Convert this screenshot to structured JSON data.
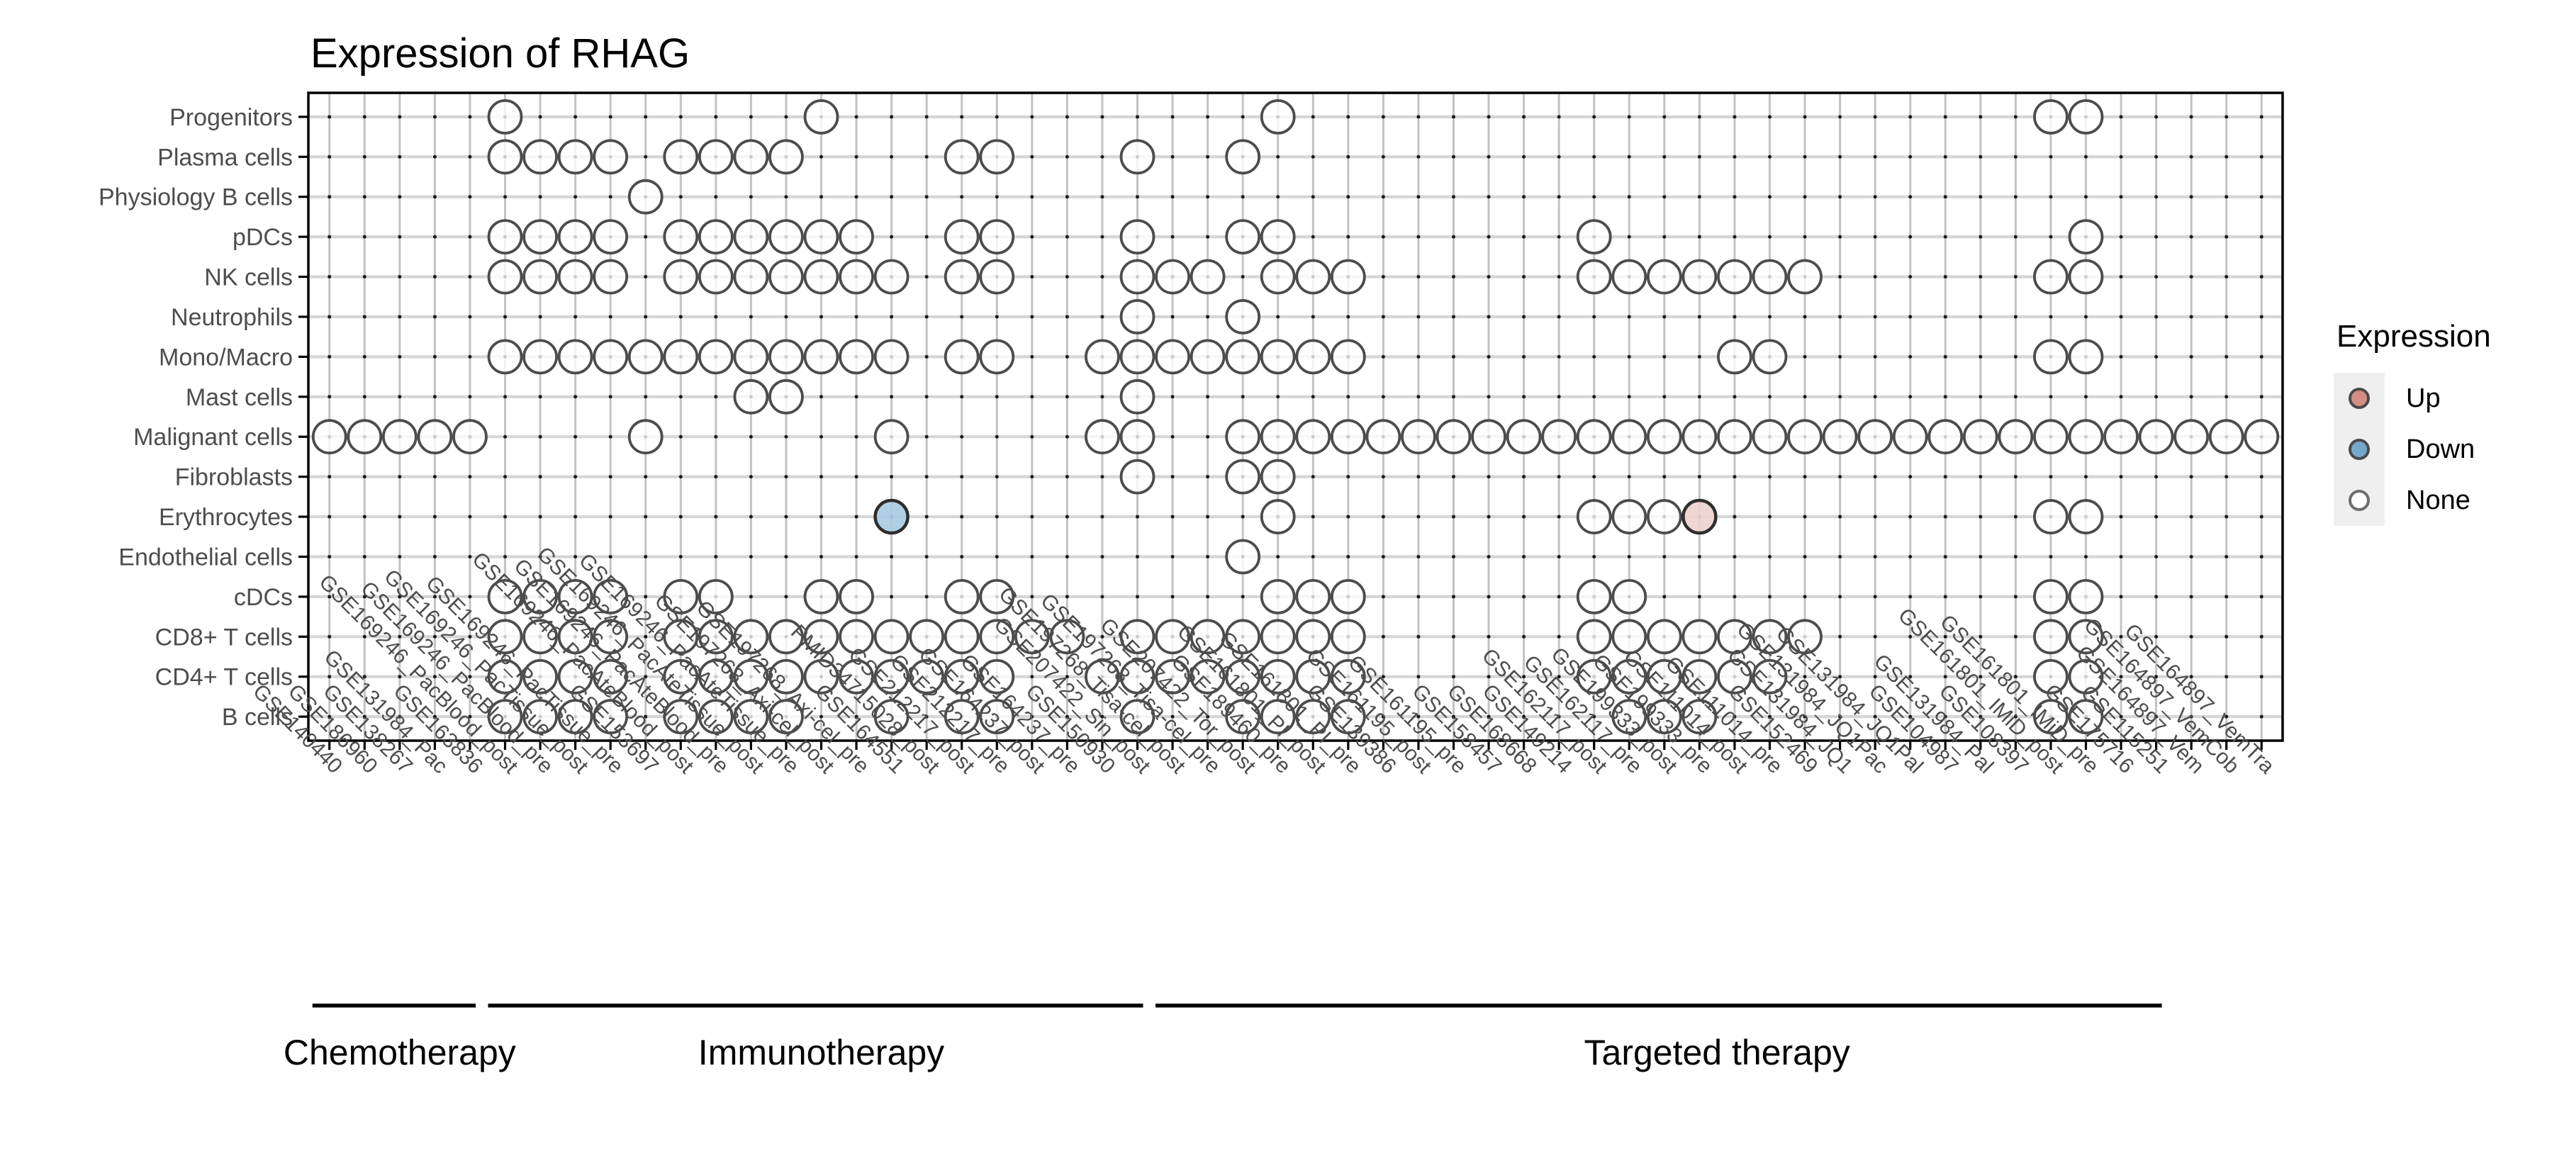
{
  "page": {
    "background": "#ffffff"
  },
  "chart_data": {
    "type": "scatter",
    "subtype": "expression-dot-matrix",
    "title": "Expression of RHAG",
    "legend": {
      "title": "Expression",
      "items": [
        {
          "label": "Up",
          "key": "up"
        },
        {
          "label": "Down",
          "key": "down"
        },
        {
          "label": "None",
          "key": "none"
        }
      ]
    },
    "colors": {
      "up_matrix": "#edd2cf",
      "down_matrix": "#aacbe2",
      "none_matrix": "#ffffff",
      "up_legend": "#d68e84",
      "down_legend": "#74a9cc",
      "none_legend": "#ffffff",
      "circle_stroke": "#4c4c4c",
      "special_stroke": "#2e2e2e",
      "grid_h": "#d6d6d6",
      "grid_v": "#c3c3c3",
      "grid_dot": "#1a1a1a",
      "axis_text": "#4d4d4d",
      "border": "#000000",
      "group_line": "#000000"
    },
    "columns": [
      "GSE140440",
      "GSE186960",
      "GSE138267",
      "GSE131984_Pac",
      "GSE163836",
      "GSE169246_PacBlood_post",
      "GSE169246_PacBlood_pre",
      "GSE169246_PacTissue_post",
      "GSE169246_PacTissue_pre",
      "GSE153697",
      "GSE169246_PacAteBlood_post",
      "GSE169246_PacAteBlood_pre",
      "GSE169246_PacAteTissue_post",
      "GSE169246_PacAteTissue_pre",
      "GSE197268_Axi-cel_post",
      "GSE197268_Axi-cel_pre",
      "GSE164551",
      "PMID34715028_post",
      "GSE212217_post",
      "GSE212217_pre",
      "GSE164237_post",
      "GSE164237_pre",
      "GSE150930",
      "GSE207422_Sin_post",
      "GSE197268_Tisa-cel_post",
      "GSE197268_Tisa-cel_pre",
      "GSE207422_Tor_post",
      "GSE189460_pre",
      "GSE161801_PI_post",
      "GSE161801_PI_pre",
      "GSE139386",
      "GSE161195_post",
      "GSE161195_pre",
      "GSE158457",
      "GSE168668",
      "GSE149214",
      "GSE162117_post",
      "GSE162117_pre",
      "GSE199333_post",
      "GSE199333_pre",
      "GSE111014_post",
      "GSE111014_pre",
      "GSE152469",
      "GSE131984_JQ1",
      "GSE131984_JQ1Pac",
      "GSE131984_JQ1Pal",
      "GSE104987",
      "GSE131984_Pal",
      "GSE108397",
      "GSE161801_IMiD_post",
      "GSE161801_IMiD_pre",
      "GSE175716",
      "GSE115251",
      "GSE164897_Vem",
      "GSE164897_VemCob",
      "GSE164897_VemTra"
    ],
    "rows": [
      {
        "label": "Progenitors",
        "cols": [
          6,
          15,
          28,
          50,
          51
        ]
      },
      {
        "label": "Plasma cells",
        "cols": [
          6,
          7,
          8,
          9,
          11,
          12,
          13,
          14,
          19,
          20,
          24,
          27
        ]
      },
      {
        "label": "Physiology B cells",
        "cols": [
          10
        ]
      },
      {
        "label": "pDCs",
        "cols": [
          6,
          7,
          8,
          9,
          11,
          12,
          13,
          14,
          15,
          16,
          19,
          20,
          24,
          27,
          28,
          37,
          51
        ]
      },
      {
        "label": "NK cells",
        "cols": [
          6,
          7,
          8,
          9,
          11,
          12,
          13,
          14,
          15,
          16,
          17,
          19,
          20,
          24,
          25,
          26,
          28,
          29,
          30,
          37,
          38,
          39,
          40,
          41,
          42,
          43,
          50,
          51
        ]
      },
      {
        "label": "Neutrophils",
        "cols": [
          24,
          27
        ]
      },
      {
        "label": "Mono/Macro",
        "cols": [
          6,
          7,
          8,
          9,
          10,
          11,
          12,
          13,
          14,
          15,
          16,
          17,
          19,
          20,
          23,
          24,
          25,
          26,
          27,
          28,
          29,
          30,
          41,
          42,
          50,
          51
        ]
      },
      {
        "label": "Mast cells",
        "cols": [
          13,
          14,
          24
        ]
      },
      {
        "label": "Malignant cells",
        "cols": [
          1,
          2,
          3,
          4,
          5,
          10,
          17,
          23,
          24,
          27,
          28,
          29,
          30,
          31,
          32,
          33,
          34,
          35,
          36,
          37,
          38,
          39,
          40,
          41,
          42,
          43,
          44,
          45,
          46,
          47,
          48,
          49,
          50,
          51,
          52,
          53,
          54,
          55,
          56
        ]
      },
      {
        "label": "Fibroblasts",
        "cols": [
          24,
          27,
          28
        ]
      },
      {
        "label": "Erythrocytes",
        "cols": [
          17,
          28,
          37,
          38,
          39,
          40,
          50,
          51
        ]
      },
      {
        "label": "Endothelial cells",
        "cols": [
          27
        ]
      },
      {
        "label": "cDCs",
        "cols": [
          6,
          7,
          8,
          9,
          11,
          12,
          15,
          16,
          19,
          20,
          28,
          29,
          30,
          37,
          38,
          50,
          51
        ]
      },
      {
        "label": "CD8+ T cells",
        "cols": [
          6,
          7,
          8,
          9,
          11,
          12,
          13,
          14,
          15,
          16,
          17,
          18,
          19,
          20,
          21,
          22,
          24,
          25,
          26,
          27,
          28,
          29,
          30,
          37,
          38,
          39,
          40,
          41,
          42,
          43,
          50,
          51
        ]
      },
      {
        "label": "CD4+ T cells",
        "cols": [
          6,
          7,
          8,
          9,
          11,
          12,
          13,
          14,
          15,
          16,
          17,
          18,
          19,
          20,
          23,
          24,
          25,
          26,
          27,
          28,
          29,
          30,
          37,
          38,
          39,
          40,
          41,
          42,
          50,
          51
        ]
      },
      {
        "label": "B cells",
        "cols": [
          6,
          7,
          8,
          9,
          11,
          12,
          13,
          14,
          17,
          19,
          20,
          24,
          27,
          28,
          29,
          30,
          38,
          39,
          40,
          50,
          51
        ]
      }
    ],
    "special_points": [
      {
        "row": "Erythrocytes",
        "col": 17,
        "column_id": "GSE164551",
        "value": "Down"
      },
      {
        "row": "Erythrocytes",
        "col": 40,
        "column_id": "GSE199333_pre",
        "value": "Up"
      }
    ],
    "groups": [
      {
        "label": "Chemotherapy",
        "cols": [
          1,
          5
        ],
        "line": [
          1,
          5
        ]
      },
      {
        "label": "Immunotherapy",
        "cols": [
          6,
          24
        ],
        "line": [
          6,
          24
        ]
      },
      {
        "label": "Targeted therapy",
        "cols": [
          25,
          56
        ],
        "line": [
          25,
          53
        ]
      }
    ],
    "axes": {
      "x_tick_rotation": 45,
      "grid": true,
      "legend_position": "right"
    }
  }
}
